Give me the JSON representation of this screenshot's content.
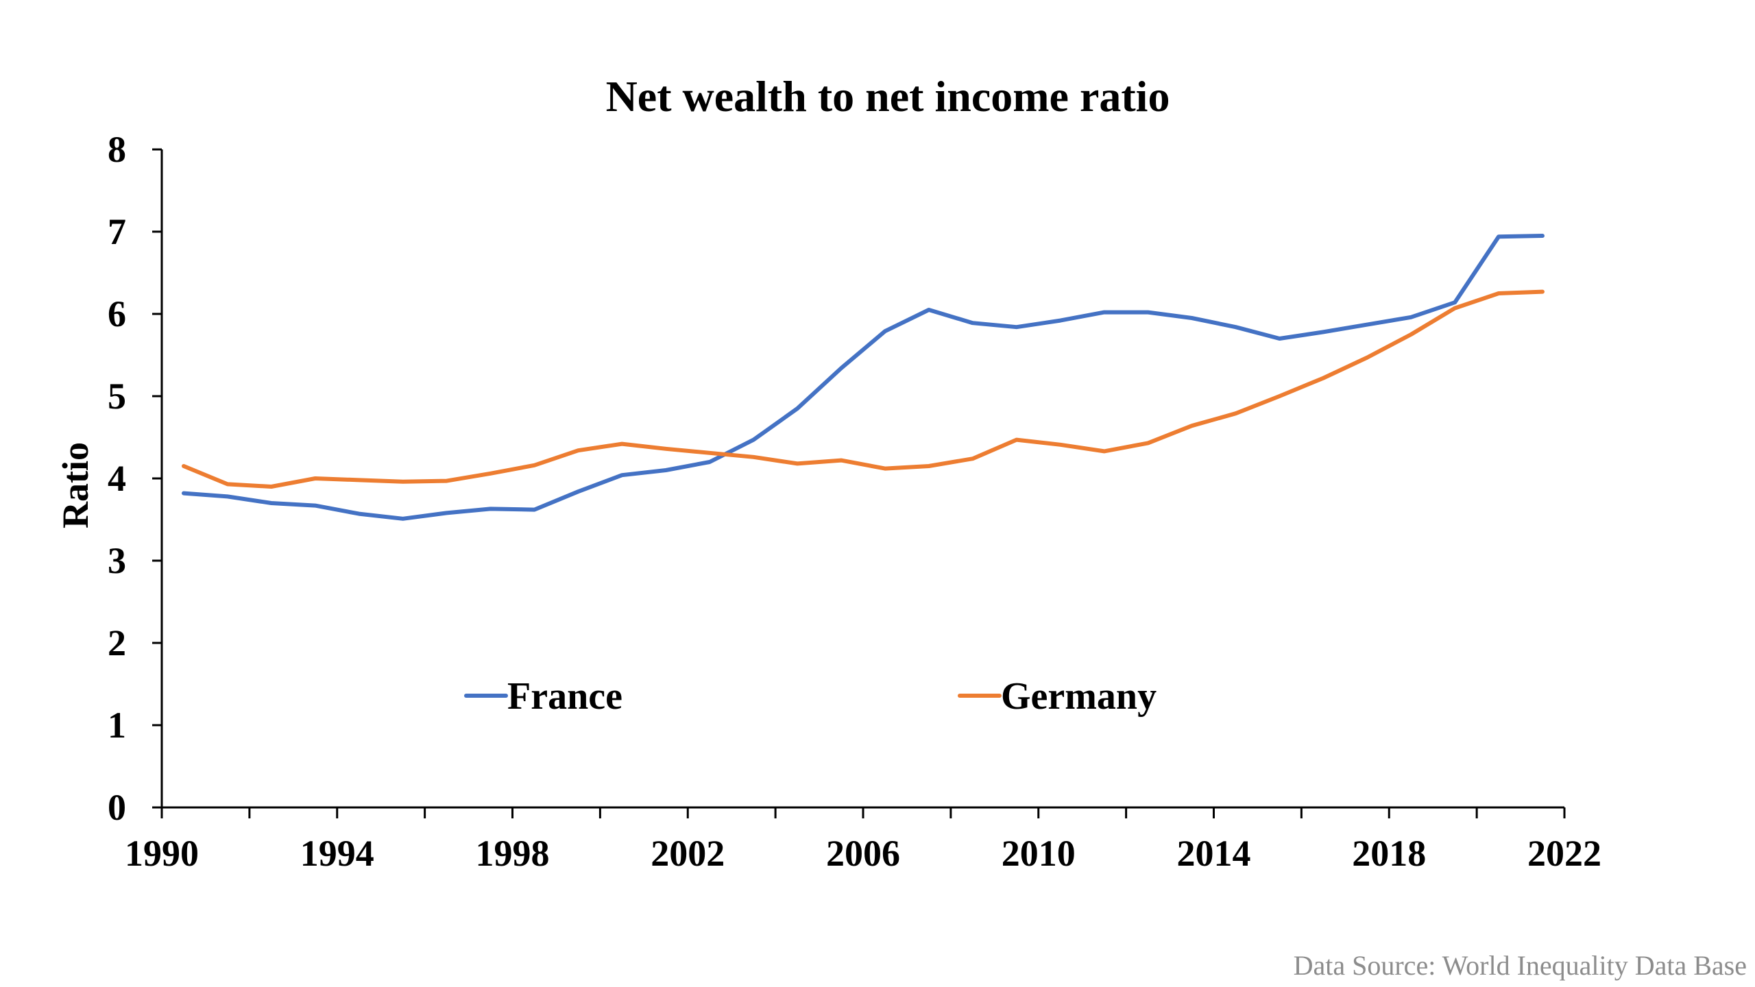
{
  "chart_data": {
    "type": "line",
    "title": "Net wealth to net income ratio",
    "xlabel": "",
    "ylabel": "Ratio",
    "xlim": [
      1990,
      2022
    ],
    "ylim": [
      0,
      8
    ],
    "x_ticks": [
      1990,
      1994,
      1998,
      2002,
      2006,
      2010,
      2014,
      2018,
      2022
    ],
    "y_ticks": [
      0,
      1,
      2,
      3,
      4,
      5,
      6,
      7,
      8
    ],
    "grid": false,
    "legend_position": "inside-lower-center",
    "x": [
      1990,
      1991,
      1992,
      1993,
      1994,
      1995,
      1996,
      1997,
      1998,
      1999,
      2000,
      2001,
      2002,
      2003,
      2004,
      2005,
      2006,
      2007,
      2008,
      2009,
      2010,
      2011,
      2012,
      2013,
      2014,
      2015,
      2016,
      2017,
      2018,
      2019,
      2020,
      2021
    ],
    "series": [
      {
        "name": "France",
        "color": "#4472C4",
        "values": [
          3.82,
          3.78,
          3.7,
          3.67,
          3.57,
          3.51,
          3.58,
          3.63,
          3.62,
          3.84,
          4.04,
          4.1,
          4.2,
          4.47,
          4.85,
          5.34,
          5.79,
          6.05,
          5.89,
          5.84,
          5.92,
          6.02,
          6.02,
          5.95,
          5.84,
          5.7,
          5.78,
          5.87,
          5.96,
          6.14,
          6.94,
          6.95
        ]
      },
      {
        "name": "Germany",
        "color": "#ED7D31",
        "values": [
          4.15,
          3.93,
          3.9,
          4.0,
          3.98,
          3.96,
          3.97,
          4.06,
          4.16,
          4.34,
          4.42,
          4.36,
          4.31,
          4.26,
          4.18,
          4.22,
          4.12,
          4.15,
          4.24,
          4.47,
          4.41,
          4.33,
          4.43,
          4.64,
          4.79,
          5.0,
          5.22,
          5.47,
          5.75,
          6.07,
          6.25,
          6.27
        ]
      }
    ]
  },
  "source_note": "Data Source: World Inequality Data Base"
}
